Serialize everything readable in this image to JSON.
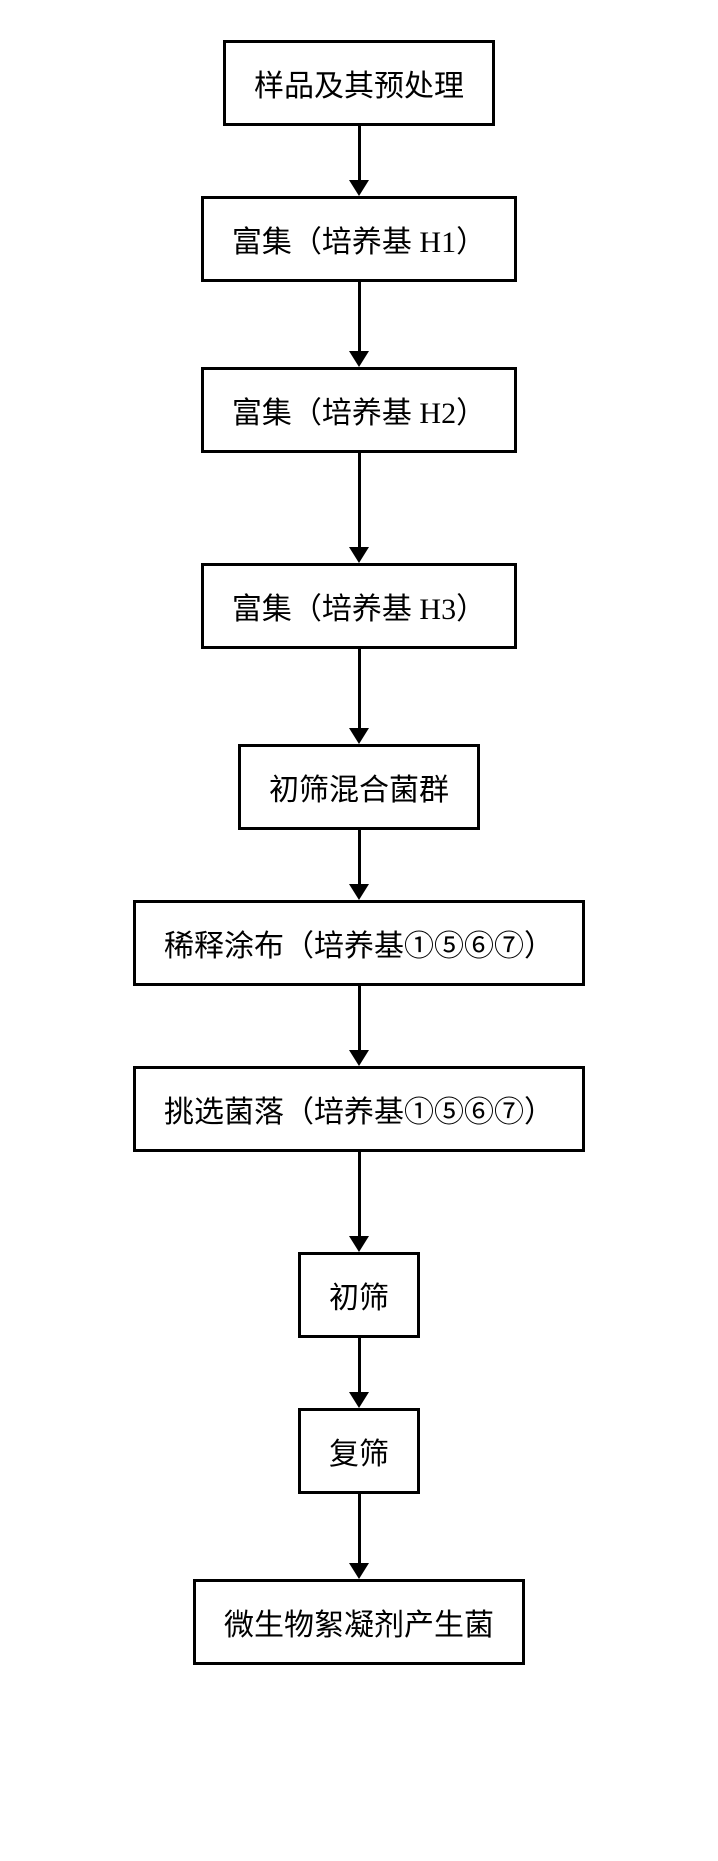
{
  "flowchart": {
    "type": "flowchart",
    "direction": "vertical",
    "background_color": "#ffffff",
    "node_border_color": "#000000",
    "node_border_width": 3,
    "node_background_color": "#ffffff",
    "text_color": "#000000",
    "font_family": "SimSun",
    "font_size": 30,
    "arrow_color": "#000000",
    "arrow_line_width": 3,
    "nodes": [
      {
        "id": "n1",
        "label": "样品及其预处理",
        "arrow_length": 70
      },
      {
        "id": "n2",
        "label": "富集（培养基 H1）",
        "arrow_length": 85
      },
      {
        "id": "n3",
        "label": "富集（培养基 H2）",
        "arrow_length": 110
      },
      {
        "id": "n4",
        "label": "富集（培养基 H3）",
        "arrow_length": 95
      },
      {
        "id": "n5",
        "label": "初筛混合菌群",
        "arrow_length": 70
      },
      {
        "id": "n6",
        "label": "稀释涂布（培养基①⑤⑥⑦）",
        "arrow_length": 80
      },
      {
        "id": "n7",
        "label": "挑选菌落（培养基①⑤⑥⑦）",
        "arrow_length": 100
      },
      {
        "id": "n8",
        "label": "初筛",
        "arrow_length": 70
      },
      {
        "id": "n9",
        "label": "复筛",
        "arrow_length": 85
      },
      {
        "id": "n10",
        "label": "微生物絮凝剂产生菌",
        "arrow_length": 0
      }
    ]
  }
}
